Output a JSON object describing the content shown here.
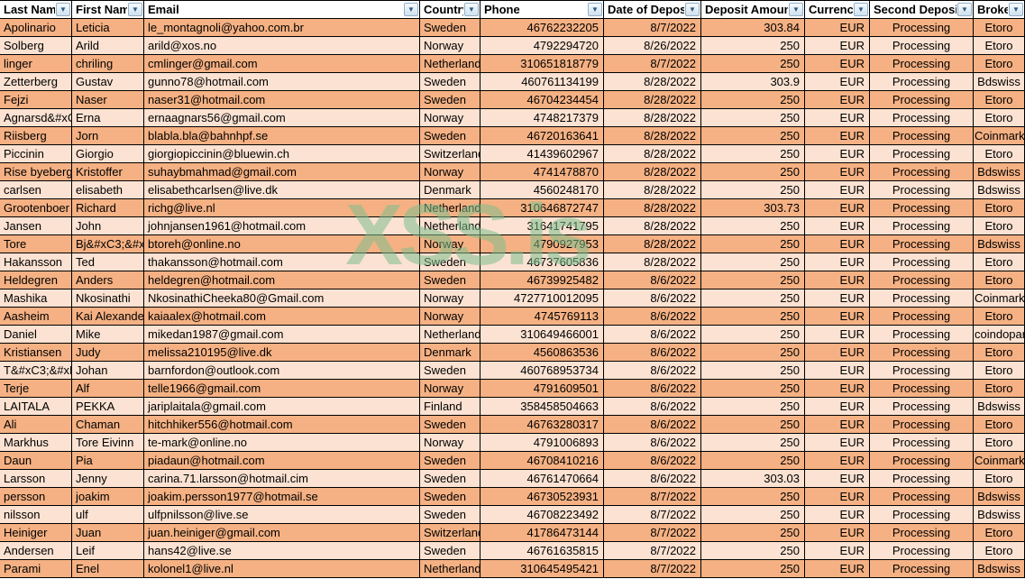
{
  "watermark": "XSS.is",
  "colors": {
    "row_dark": "#f5b183",
    "row_light": "#fbe2d2",
    "gridline": "#000000",
    "filter_button": "#cfe0ec",
    "watermark_green": "#7dbe8c"
  },
  "icons": {
    "filter_dropdown_arrow": "▼"
  },
  "table": {
    "columns": [
      "Last Name",
      "First Name",
      "Email",
      "Country",
      "Phone",
      "Date of Deposit",
      "Deposit Amount",
      "Currency",
      "Second Deposit",
      "Broker"
    ],
    "rows": [
      [
        "Apolinario",
        "Leticia",
        "le_montagnoli@yahoo.com.br",
        "Sweden",
        "46762232205",
        "8/7/2022",
        "303.84",
        "EUR",
        "Processing",
        "Etoro"
      ],
      [
        "Solberg",
        "Arild",
        "arild@xos.no",
        "Norway",
        "4792294720",
        "8/26/2022",
        "250",
        "EUR",
        "Processing",
        "Etoro"
      ],
      [
        "linger",
        "chriling",
        "cmlinger@gmail.com",
        "Netherland",
        "310651818779",
        "8/7/2022",
        "250",
        "EUR",
        "Processing",
        "Etoro"
      ],
      [
        "Zetterberg",
        "Gustav",
        "gunno78@hotmail.com",
        "Sweden",
        "460761134199",
        "8/28/2022",
        "303.9",
        "EUR",
        "Processing",
        "Bdswiss"
      ],
      [
        "Fejzi",
        "Naser",
        "naser31@hotmail.com",
        "Sweden",
        "46704234454",
        "8/28/2022",
        "250",
        "EUR",
        "Processing",
        "Etoro"
      ],
      [
        "Agnarsd&#xC",
        "Erna",
        "ernaagnars56@gmail.com",
        "Norway",
        "4748217379",
        "8/28/2022",
        "250",
        "EUR",
        "Processing",
        "Etoro"
      ],
      [
        "Riisberg",
        "Jorn",
        "blabla.bla@bahnhpf.se",
        "Sweden",
        "46720163641",
        "8/28/2022",
        "250",
        "EUR",
        "Processing",
        "Coinmark"
      ],
      [
        "Piccinin",
        "Giorgio",
        "giorgiopiccinin@bluewin.ch",
        "Switzerland",
        "41439602967",
        "8/28/2022",
        "250",
        "EUR",
        "Processing",
        "Etoro"
      ],
      [
        "Rise byeberg",
        "Kristoffer",
        "suhaybmahmad@gmail.com",
        "Norway",
        "4741478870",
        "8/28/2022",
        "250",
        "EUR",
        "Processing",
        "Bdswiss"
      ],
      [
        "carlsen",
        "elisabeth",
        "elisabethcarlsen@live.dk",
        "Denmark",
        "4560248170",
        "8/28/2022",
        "250",
        "EUR",
        "Processing",
        "Bdswiss"
      ],
      [
        "Grootenboer",
        "Richard",
        "richg@live.nl",
        "Netherland",
        "310646872747",
        "8/28/2022",
        "303.73",
        "EUR",
        "Processing",
        "Etoro"
      ],
      [
        "Jansen",
        "John",
        "johnjansen1961@hotmail.com",
        "Netherland",
        "31641741795",
        "8/28/2022",
        "250",
        "EUR",
        "Processing",
        "Etoro"
      ],
      [
        "Tore",
        "Bj&#xC3;&#x",
        "btoreh@online.no",
        "Norway",
        "4790927953",
        "8/28/2022",
        "250",
        "EUR",
        "Processing",
        "Bdswiss"
      ],
      [
        "Hakansson",
        "Ted",
        "thakansson@hotmail.com",
        "Sweden",
        "46737605836",
        "8/28/2022",
        "250",
        "EUR",
        "Processing",
        "Etoro"
      ],
      [
        "Heldegren",
        "Anders",
        "heldegren@hotmail.com",
        "Sweden",
        "46739925482",
        "8/6/2022",
        "250",
        "EUR",
        "Processing",
        "Etoro"
      ],
      [
        "Mashika",
        "Nkosinathi",
        "NkosinathiCheeka80@Gmail.com",
        "Norway",
        "4727710012095",
        "8/6/2022",
        "250",
        "EUR",
        "Processing",
        "Coinmark"
      ],
      [
        "Aasheim",
        "Kai Alexander",
        "kaiaalex@hotmail.com",
        "Norway",
        "4745769113",
        "8/6/2022",
        "250",
        "EUR",
        "Processing",
        "Etoro"
      ],
      [
        "Daniel",
        "Mike",
        "mikedan1987@gmail.com",
        "Netherland",
        "310649466001",
        "8/6/2022",
        "250",
        "EUR",
        "Processing",
        "coindopar"
      ],
      [
        "Kristiansen",
        "Judy",
        "melissa210195@live.dk",
        "Denmark",
        "4560863536",
        "8/6/2022",
        "250",
        "EUR",
        "Processing",
        "Etoro"
      ],
      [
        "T&#xC3;&#xE",
        "Johan",
        "barnfordon@outlook.com",
        "Sweden",
        "460768953734",
        "8/6/2022",
        "250",
        "EUR",
        "Processing",
        "Etoro"
      ],
      [
        "Terje",
        "Alf",
        "telle1966@gmail.com",
        "Norway",
        "4791609501",
        "8/6/2022",
        "250",
        "EUR",
        "Processing",
        "Etoro"
      ],
      [
        "LAITALA",
        "PEKKA",
        "jariplaitala@gmail.com",
        "Finland",
        "358458504663",
        "8/6/2022",
        "250",
        "EUR",
        "Processing",
        "Bdswiss"
      ],
      [
        "Ali",
        "Chaman",
        "hitchhiker556@hotmail.com",
        "Sweden",
        "46763280317",
        "8/6/2022",
        "250",
        "EUR",
        "Processing",
        "Etoro"
      ],
      [
        "Markhus",
        "Tore Eivinn",
        "te-mark@online.no",
        "Norway",
        "4791006893",
        "8/6/2022",
        "250",
        "EUR",
        "Processing",
        "Etoro"
      ],
      [
        "Daun",
        "Pia",
        "piadaun@hotmail.com",
        "Sweden",
        "46708410216",
        "8/6/2022",
        "250",
        "EUR",
        "Processing",
        "Coinmark"
      ],
      [
        "Larsson",
        "Jenny",
        "carina.71.larsson@hotmail.cim",
        "Sweden",
        "46761470664",
        "8/6/2022",
        "303.03",
        "EUR",
        "Processing",
        "Etoro"
      ],
      [
        "persson",
        "joakim",
        "joakim.persson1977@hotmail.se",
        "Sweden",
        "46730523931",
        "8/7/2022",
        "250",
        "EUR",
        "Processing",
        "Bdswiss"
      ],
      [
        "nilsson",
        "ulf",
        "ulfpnilsson@live.se",
        "Sweden",
        "46708223492",
        "8/7/2022",
        "250",
        "EUR",
        "Processing",
        "Bdswiss"
      ],
      [
        "Heiniger",
        "Juan",
        "juan.heiniger@gmail.com",
        "Switzerland",
        "41786473144",
        "8/7/2022",
        "250",
        "EUR",
        "Processing",
        "Etoro"
      ],
      [
        "Andersen",
        "Leif",
        "hans42@live.se",
        "Sweden",
        "46761635815",
        "8/7/2022",
        "250",
        "EUR",
        "Processing",
        "Etoro"
      ],
      [
        "Parami",
        "Enel",
        "kolonel1@live.nl",
        "Netherland",
        "310645495421",
        "8/7/2022",
        "250",
        "EUR",
        "Processing",
        "Bdswiss"
      ]
    ]
  }
}
